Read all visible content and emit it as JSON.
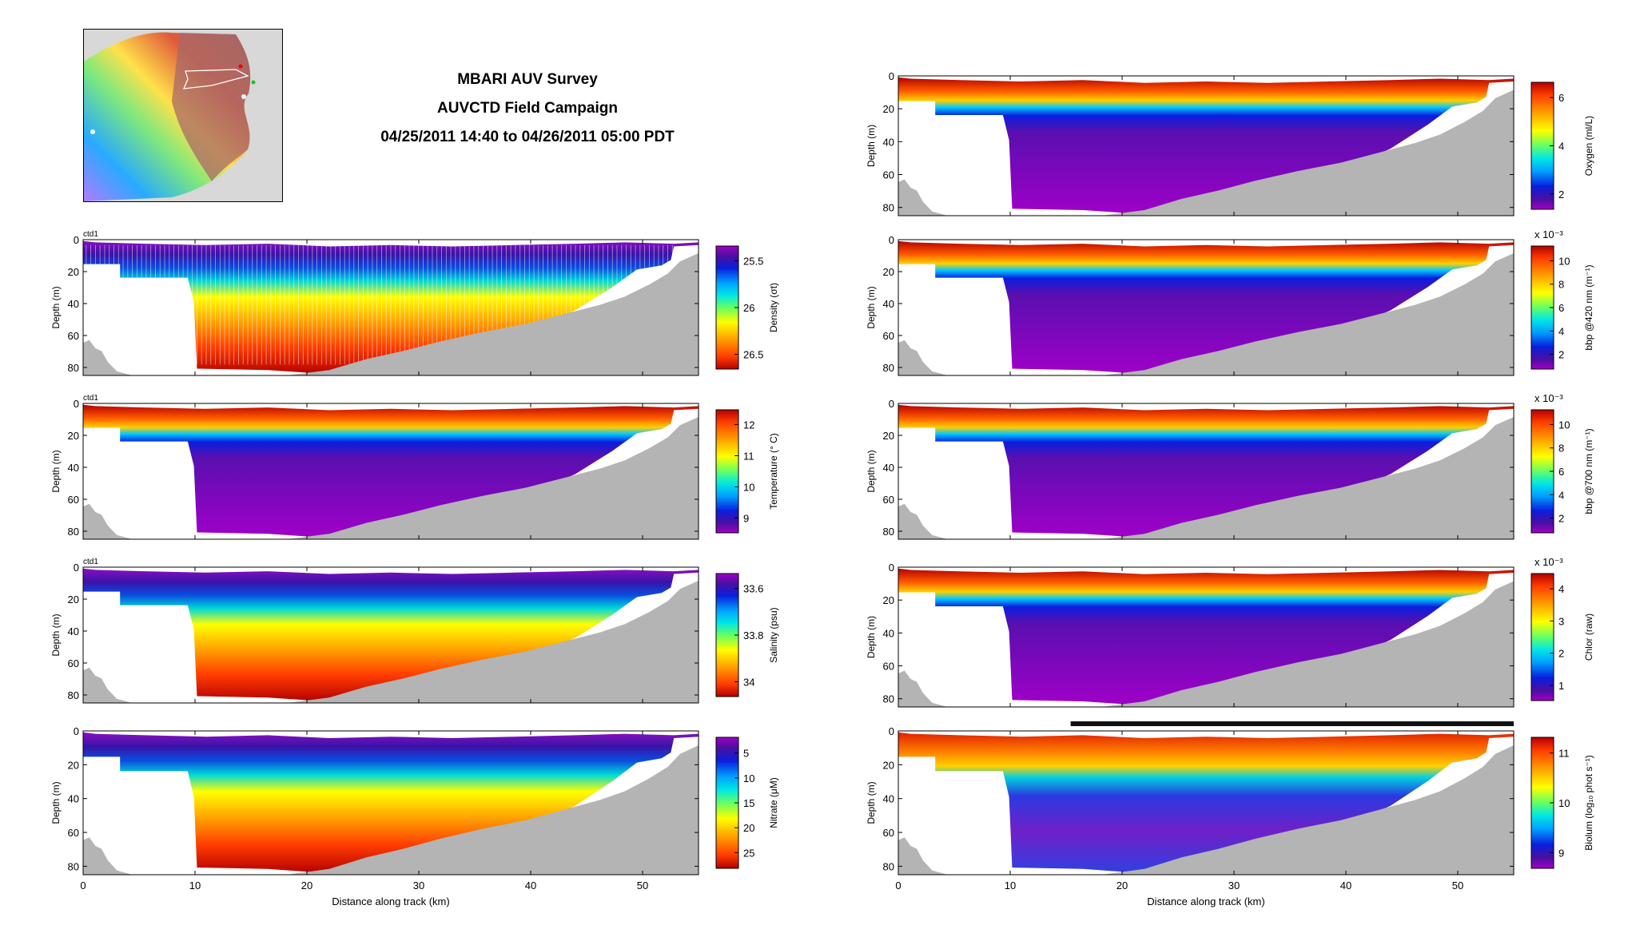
{
  "title": {
    "line1": "MBARI AUV Survey",
    "line2": "AUVCTD Field Campaign",
    "line3": "04/25/2011 14:40 to 04/26/2011 05:00 PDT"
  },
  "colors": {
    "bathymetry": "#b4b4b4",
    "track_line": "#ffffff",
    "colormap": [
      "#a000c8",
      "#4b0fa0",
      "#0a1ede",
      "#00a0ff",
      "#00e6e6",
      "#64ff64",
      "#ffff00",
      "#ffa500",
      "#ff3c00",
      "#b40000"
    ]
  },
  "map": {
    "name": "survey-location-map"
  },
  "chart_data": [
    {
      "type": "heatmap",
      "panel": "density",
      "header": "ctd1",
      "xlabel": "",
      "ylabel": "Depth (m)",
      "colorbar_label": "Density (σt)",
      "colorbar_ticks": [
        "25.5",
        "26",
        "26.5"
      ],
      "colorbar_reversed": true,
      "xlim": [
        0,
        55
      ],
      "ylim": [
        0,
        85
      ],
      "x_ticks": [
        "0",
        "10",
        "20",
        "30",
        "40",
        "50"
      ],
      "y_ticks": [
        "0",
        "20",
        "40",
        "60",
        "80"
      ],
      "show_x_ticklabels": false,
      "with_profile_lines": true,
      "has_header": true,
      "has_exponent": false,
      "surface_values": "low",
      "deep_values": "high"
    },
    {
      "type": "heatmap",
      "panel": "temperature",
      "header": "ctd1",
      "xlabel": "",
      "ylabel": "Depth (m)",
      "colorbar_label": "Temperature (° C)",
      "colorbar_ticks": [
        "12",
        "11",
        "10",
        "9"
      ],
      "colorbar_reversed": false,
      "xlim": [
        0,
        55
      ],
      "ylim": [
        0,
        85
      ],
      "x_ticks": [
        "0",
        "10",
        "20",
        "30",
        "40",
        "50"
      ],
      "y_ticks": [
        "0",
        "20",
        "40",
        "60",
        "80"
      ],
      "show_x_ticklabels": false,
      "with_profile_lines": false,
      "has_header": true,
      "has_exponent": false,
      "surface_values": "high",
      "deep_values": "low"
    },
    {
      "type": "heatmap",
      "panel": "salinity",
      "header": "ctd1",
      "xlabel": "",
      "ylabel": "Depth (m)",
      "colorbar_label": "Salinity (psu)",
      "colorbar_ticks": [
        "33.6",
        "33.8",
        "34"
      ],
      "colorbar_reversed": true,
      "xlim": [
        0,
        55
      ],
      "ylim": [
        0,
        85
      ],
      "x_ticks": [
        "0",
        "10",
        "20",
        "30",
        "40",
        "50"
      ],
      "y_ticks": [
        "0",
        "20",
        "40",
        "60",
        "80"
      ],
      "show_x_ticklabels": false,
      "with_profile_lines": false,
      "has_header": true,
      "has_exponent": false,
      "surface_values": "low",
      "deep_values": "high"
    },
    {
      "type": "heatmap",
      "panel": "nitrate",
      "header": "",
      "xlabel": "Distance along track (km)",
      "ylabel": "Depth (m)",
      "colorbar_label": "Nitrate (μM)",
      "colorbar_ticks": [
        "5",
        "10",
        "15",
        "20",
        "25"
      ],
      "colorbar_reversed": true,
      "xlim": [
        0,
        55
      ],
      "ylim": [
        0,
        85
      ],
      "x_ticks": [
        "0",
        "10",
        "20",
        "30",
        "40",
        "50"
      ],
      "y_ticks": [
        "0",
        "20",
        "40",
        "60",
        "80"
      ],
      "show_x_ticklabels": true,
      "with_profile_lines": false,
      "has_header": false,
      "has_exponent": false,
      "surface_values": "low",
      "deep_values": "high"
    },
    {
      "type": "heatmap",
      "panel": "oxygen",
      "header": "",
      "xlabel": "",
      "ylabel": "Depth (m)",
      "colorbar_label": "Oxygen (ml/L)",
      "colorbar_ticks": [
        "6",
        "4",
        "2"
      ],
      "colorbar_reversed": false,
      "xlim": [
        0,
        55
      ],
      "ylim": [
        0,
        85
      ],
      "x_ticks": [
        "0",
        "10",
        "20",
        "30",
        "40",
        "50"
      ],
      "y_ticks": [
        "0",
        "20",
        "40",
        "60",
        "80"
      ],
      "show_x_ticklabels": false,
      "with_profile_lines": false,
      "has_header": false,
      "has_exponent": false,
      "surface_values": "high",
      "deep_values": "low"
    },
    {
      "type": "heatmap",
      "panel": "bbp420",
      "header": "",
      "xlabel": "",
      "ylabel": "Depth (m)",
      "colorbar_label": "bbp @420 nm (m⁻¹)",
      "colorbar_ticks": [
        "10",
        "8",
        "6",
        "4",
        "2"
      ],
      "colorbar_reversed": false,
      "exponent": "x 10⁻³",
      "xlim": [
        0,
        55
      ],
      "ylim": [
        0,
        85
      ],
      "x_ticks": [
        "0",
        "10",
        "20",
        "30",
        "40",
        "50"
      ],
      "y_ticks": [
        "0",
        "20",
        "40",
        "60",
        "80"
      ],
      "show_x_ticklabels": false,
      "with_profile_lines": false,
      "has_header": false,
      "has_exponent": true,
      "surface_values": "high",
      "deep_values": "low"
    },
    {
      "type": "heatmap",
      "panel": "bbp700",
      "header": "",
      "xlabel": "",
      "ylabel": "Depth (m)",
      "colorbar_label": "bbp @700 nm (m⁻¹)",
      "colorbar_ticks": [
        "10",
        "8",
        "6",
        "4",
        "2"
      ],
      "colorbar_reversed": false,
      "exponent": "x 10⁻³",
      "xlim": [
        0,
        55
      ],
      "ylim": [
        0,
        85
      ],
      "x_ticks": [
        "0",
        "10",
        "20",
        "30",
        "40",
        "50"
      ],
      "y_ticks": [
        "0",
        "20",
        "40",
        "60",
        "80"
      ],
      "show_x_ticklabels": false,
      "with_profile_lines": false,
      "has_header": false,
      "has_exponent": true,
      "surface_values": "high",
      "deep_values": "low"
    },
    {
      "type": "heatmap",
      "panel": "chlor",
      "header": "",
      "xlabel": "",
      "ylabel": "Depth (m)",
      "colorbar_label": "Chlor (raw)",
      "colorbar_ticks": [
        "4",
        "3",
        "2",
        "1"
      ],
      "colorbar_reversed": false,
      "exponent": "x 10⁻³",
      "xlim": [
        0,
        55
      ],
      "ylim": [
        0,
        85
      ],
      "x_ticks": [
        "0",
        "10",
        "20",
        "30",
        "40",
        "50"
      ],
      "y_ticks": [
        "0",
        "20",
        "40",
        "60",
        "80"
      ],
      "show_x_ticklabels": false,
      "with_profile_lines": false,
      "has_header": false,
      "has_exponent": true,
      "surface_values": "high",
      "deep_values": "low"
    },
    {
      "type": "heatmap",
      "panel": "biolum",
      "header": "",
      "xlabel": "Distance along track (km)",
      "ylabel": "Depth (m)",
      "colorbar_label": "Biolum (log₁₀ phot s⁻¹)",
      "colorbar_ticks": [
        "11",
        "10",
        "9"
      ],
      "colorbar_reversed": false,
      "xlim": [
        0,
        55
      ],
      "ylim": [
        0,
        85
      ],
      "x_ticks": [
        "0",
        "10",
        "20",
        "30",
        "40",
        "50"
      ],
      "y_ticks": [
        "0",
        "20",
        "40",
        "60",
        "80"
      ],
      "show_x_ticklabels": true,
      "with_profile_lines": false,
      "has_header": false,
      "has_exponent": false,
      "surface_values": "high",
      "deep_values": "mixed",
      "night_bar": true
    }
  ]
}
